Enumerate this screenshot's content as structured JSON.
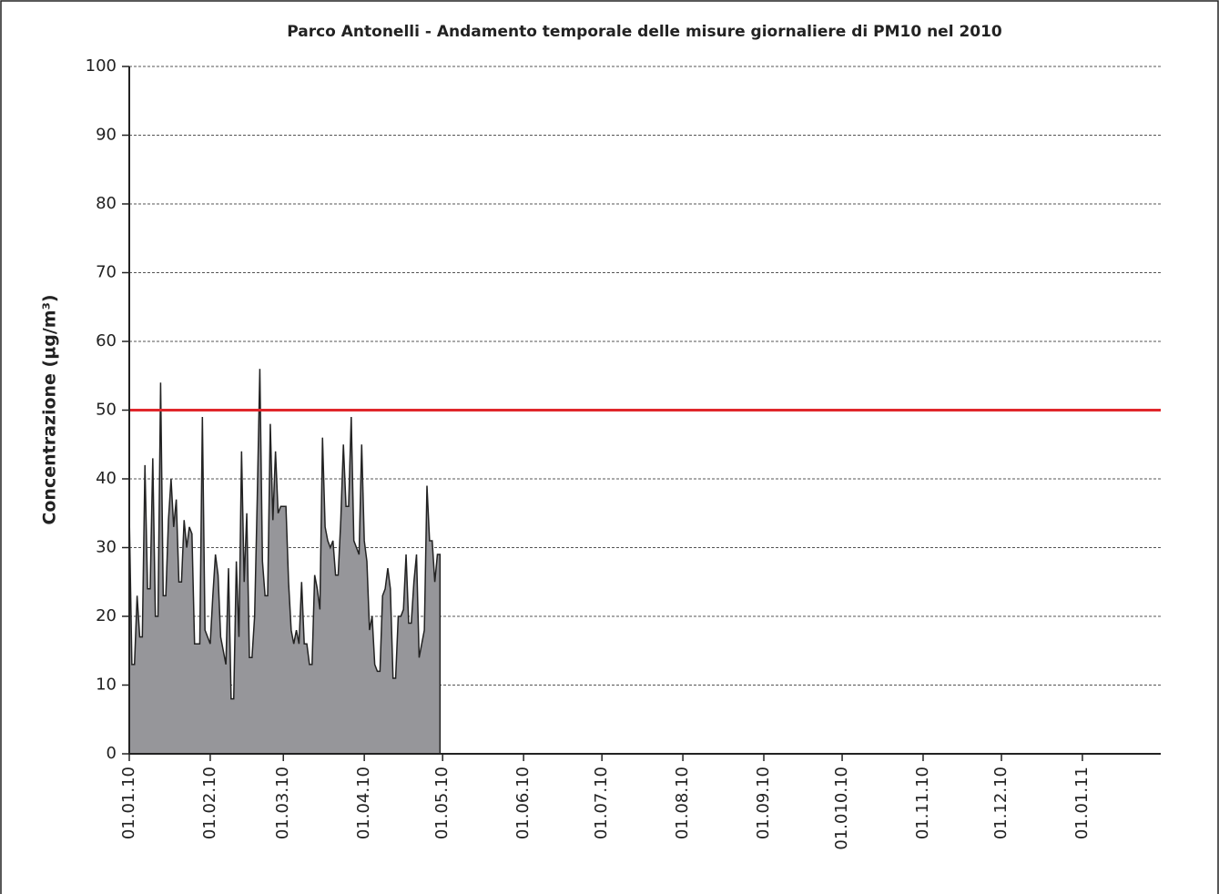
{
  "chart_data": {
    "type": "area",
    "title": "Parco Antonelli - Andamento temporale delle misure giornaliere di PM10 nel 2010",
    "y_label": "Concentrazione (µg/m³)",
    "x": [
      0,
      1,
      2,
      3,
      4,
      5,
      6,
      7,
      8,
      9,
      10,
      11,
      12,
      13,
      14,
      15,
      16,
      17,
      18,
      19,
      20,
      21,
      22,
      23,
      24,
      25,
      26,
      27,
      28,
      29,
      30,
      31,
      32,
      33,
      34,
      35,
      36,
      37,
      38,
      39,
      40,
      41,
      42,
      43,
      44,
      45,
      46,
      47,
      48,
      49,
      50,
      51,
      52,
      53,
      54,
      55,
      56,
      57,
      58,
      59,
      60,
      61,
      62,
      63,
      64,
      65,
      66,
      67,
      68,
      69,
      70,
      71,
      72,
      73,
      74,
      75,
      76,
      77,
      78,
      79,
      80,
      81,
      82,
      83,
      84,
      85,
      86,
      87,
      88,
      89,
      90,
      91,
      92,
      93,
      94,
      95,
      96,
      97,
      98,
      99,
      100,
      101,
      102,
      103,
      104,
      105,
      106,
      107,
      108,
      109,
      110,
      111,
      112,
      113,
      114,
      115,
      116,
      117,
      118,
      119
    ],
    "values": [
      35,
      13,
      13,
      23,
      17,
      17,
      42,
      24,
      24,
      43,
      20,
      20,
      54,
      23,
      23,
      34,
      40,
      33,
      37,
      25,
      25,
      34,
      30,
      33,
      32,
      16,
      16,
      16,
      49,
      18,
      17,
      16,
      23,
      29,
      26,
      17,
      15,
      13,
      27,
      8,
      8,
      28,
      17,
      44,
      25,
      35,
      14,
      14,
      20,
      37,
      56,
      28,
      23,
      23,
      48,
      34,
      44,
      35,
      36,
      36,
      36,
      25,
      18,
      16,
      18,
      16,
      25,
      16,
      16,
      13,
      13,
      26,
      24,
      21,
      46,
      33,
      31,
      30,
      31,
      26,
      26,
      34,
      45,
      36,
      36,
      49,
      31,
      30,
      29,
      45,
      31,
      28,
      18,
      20,
      13,
      12,
      12,
      23,
      24,
      27,
      24,
      11,
      11,
      20,
      20,
      21,
      29,
      19,
      19,
      25,
      29,
      14,
      16,
      18,
      39,
      31,
      31,
      25,
      29,
      29
    ],
    "color": "#96969a",
    "line_color": "#222222",
    "reference_line": {
      "value": 50,
      "color": "#e0262b"
    },
    "xlim": [
      0,
      395
    ],
    "xticks": [
      {
        "value": 0,
        "label": "01.01.10"
      },
      {
        "value": 31,
        "label": "01.02.10"
      },
      {
        "value": 59,
        "label": "01.03.10"
      },
      {
        "value": 90,
        "label": "01.04.10"
      },
      {
        "value": 120,
        "label": "01.05.10"
      },
      {
        "value": 151,
        "label": "01.06.10"
      },
      {
        "value": 181,
        "label": "01.07.10"
      },
      {
        "value": 212,
        "label": "01.08.10"
      },
      {
        "value": 243,
        "label": "01.09.10"
      },
      {
        "value": 273,
        "label": "01.010.10"
      },
      {
        "value": 304,
        "label": "01.11.10"
      },
      {
        "value": 334,
        "label": "01.12.10"
      },
      {
        "value": 365,
        "label": "01.01.11"
      }
    ],
    "ylim": [
      0,
      100
    ],
    "yticks": [
      0,
      10,
      20,
      30,
      40,
      50,
      60,
      70,
      80,
      90,
      100
    ],
    "grid": true
  }
}
